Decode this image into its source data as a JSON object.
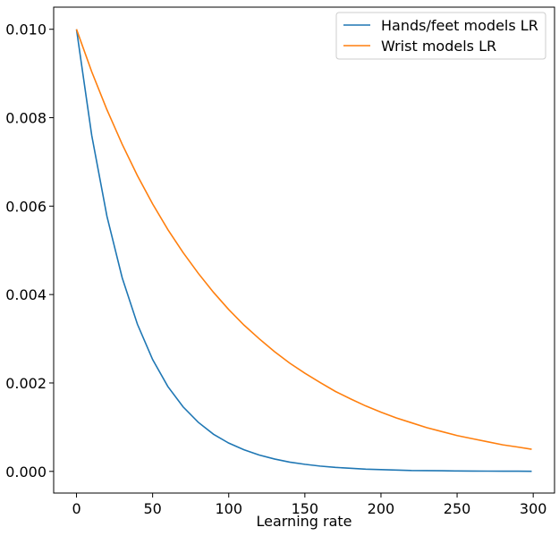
{
  "chart_data": {
    "type": "line",
    "title": "",
    "xlabel": "Learning rate",
    "ylabel": "",
    "xlim": [
      -15,
      314
    ],
    "ylim": [
      -0.00049,
      0.0105
    ],
    "x_ticks": [
      0,
      50,
      100,
      150,
      200,
      250,
      300
    ],
    "x_tick_labels": [
      "0",
      "50",
      "100",
      "150",
      "200",
      "250",
      "300"
    ],
    "y_ticks": [
      0.0,
      0.002,
      0.004,
      0.006,
      0.008,
      0.01
    ],
    "y_tick_labels": [
      "0.000",
      "0.002",
      "0.004",
      "0.006",
      "0.008",
      "0.010"
    ],
    "grid": false,
    "legend_position": "top-right",
    "series": [
      {
        "name": "Hands/feet models LR",
        "color": "#1f77b4",
        "x": [
          0,
          10,
          20,
          30,
          40,
          50,
          60,
          70,
          80,
          90,
          100,
          110,
          120,
          130,
          140,
          150,
          160,
          170,
          180,
          190,
          200,
          210,
          220,
          230,
          240,
          250,
          260,
          270,
          280,
          290,
          299
        ],
        "y": [
          0.01,
          0.0076,
          0.00577,
          0.00438,
          0.00333,
          0.00253,
          0.00192,
          0.00146,
          0.00111,
          0.00084,
          0.00064,
          0.00049,
          0.00037,
          0.00028,
          0.00021,
          0.00016,
          0.00012,
          9e-05,
          7e-05,
          5e-05,
          4e-05,
          3e-05,
          2e-05,
          1.8e-05,
          1.4e-05,
          1e-05,
          8e-06,
          6e-06,
          5e-06,
          4e-06,
          3e-06
        ]
      },
      {
        "name": "Wrist models LR",
        "color": "#ff7f0e",
        "x": [
          0,
          10,
          20,
          30,
          40,
          50,
          60,
          70,
          80,
          90,
          100,
          110,
          120,
          130,
          140,
          150,
          160,
          170,
          180,
          190,
          200,
          210,
          220,
          230,
          240,
          250,
          260,
          270,
          280,
          290,
          299
        ],
        "y": [
          0.01,
          0.00904,
          0.00818,
          0.0074,
          0.00669,
          0.00605,
          0.00547,
          0.00495,
          0.00448,
          0.00405,
          0.00366,
          0.00331,
          0.003,
          0.00271,
          0.00245,
          0.00222,
          0.00201,
          0.00181,
          0.00164,
          0.00148,
          0.00134,
          0.00121,
          0.0011,
          0.00099,
          0.0009,
          0.00081,
          0.00074,
          0.00067,
          0.0006,
          0.00055,
          0.0005
        ]
      }
    ]
  }
}
